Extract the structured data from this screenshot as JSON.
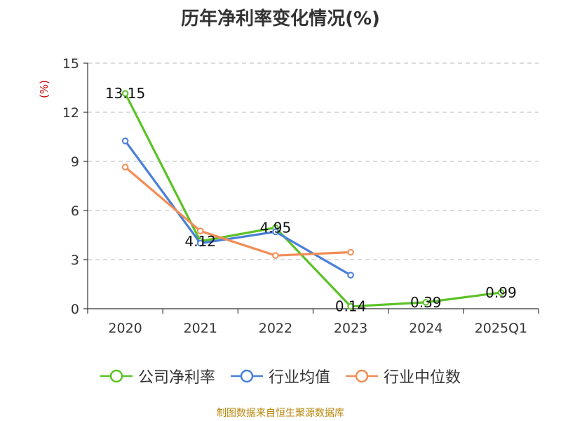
{
  "title": "历年净利率变化情况(%)",
  "source_text": "制图数据来自恒生聚源数据库",
  "chart_data": {
    "type": "line",
    "title": "历年净利率变化情况(%)",
    "ylabel": "(%)",
    "categories": [
      "2020",
      "2021",
      "2022",
      "2023",
      "2024",
      "2025Q1"
    ],
    "yticks": [
      "0",
      "3",
      "6",
      "9",
      "12",
      "15"
    ],
    "ylim": [
      0,
      15
    ],
    "grid": true,
    "legend_position": "bottom",
    "series": [
      {
        "name": "公司净利率",
        "color": "#5bc226",
        "values": [
          13.15,
          4.12,
          4.95,
          0.14,
          0.39,
          0.99
        ],
        "labels": [
          "13.15",
          "4.12",
          "4.95",
          "0.14",
          "0.39",
          "0.99"
        ]
      },
      {
        "name": "行业均值",
        "color": "#4a7fd8",
        "values": [
          10.25,
          4.0,
          4.7,
          2.05,
          null,
          null
        ]
      },
      {
        "name": "行业中位数",
        "color": "#f28c55",
        "values": [
          8.65,
          4.75,
          3.25,
          3.45,
          null,
          null
        ]
      }
    ]
  }
}
